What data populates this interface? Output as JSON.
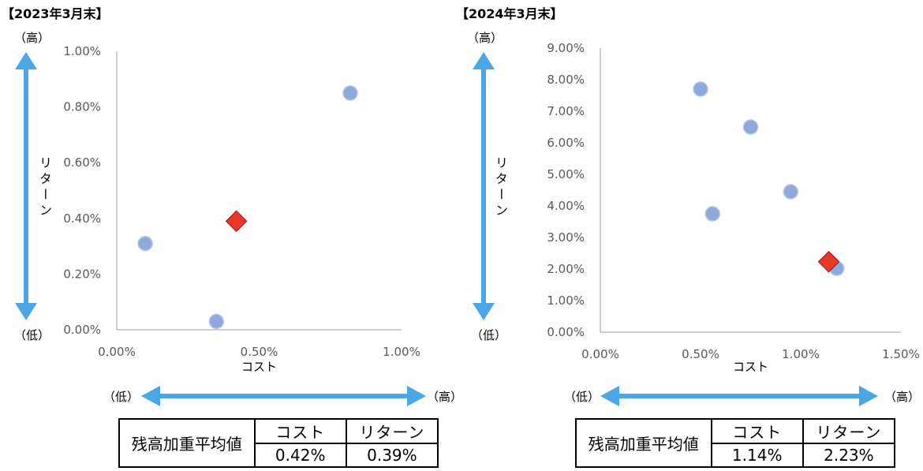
{
  "colors": {
    "point": "#8eaadb",
    "highlight": "#e8382a",
    "highlight_edge": "#a31f15",
    "arrow": "#4aa6e4",
    "axis": "#bfbfbf"
  },
  "panels": [
    {
      "title": "【2023年3月末】",
      "high_label": "（高）",
      "low_label": "（低）",
      "y_axis_word": "リターン",
      "x_low_label": "（低）",
      "x_high_label": "（高）",
      "table": {
        "row_label": "残高加重平均値",
        "col_cost": "コスト",
        "col_return": "リターン",
        "cost_value": "0.42%",
        "return_value": "0.39%"
      }
    },
    {
      "title": "【2024年3月末】",
      "high_label": "（高）",
      "low_label": "（低）",
      "y_axis_word": "リターン",
      "x_low_label": "（低）",
      "x_high_label": "（高）",
      "table": {
        "row_label": "残高加重平均値",
        "col_cost": "コスト",
        "col_return": "リターン",
        "cost_value": "1.14%",
        "return_value": "2.23%"
      }
    }
  ],
  "chart_data": [
    {
      "type": "scatter",
      "title": "【2023年3月末】",
      "xlabel": "コスト",
      "ylabel": "リターン",
      "xlim": [
        0,
        1.0
      ],
      "ylim": [
        0,
        1.0
      ],
      "x_ticks": [
        "0.00%",
        "0.50%",
        "1.00%"
      ],
      "y_ticks": [
        "0.00%",
        "0.20%",
        "0.40%",
        "0.60%",
        "0.80%",
        "1.00%"
      ],
      "grid": false,
      "points": [
        {
          "x": 0.1,
          "y": 0.31
        },
        {
          "x": 0.35,
          "y": 0.03
        },
        {
          "x": 0.82,
          "y": 0.85
        }
      ],
      "weighted_average": {
        "x": 0.42,
        "y": 0.39
      }
    },
    {
      "type": "scatter",
      "title": "【2024年3月末】",
      "xlabel": "コスト",
      "ylabel": "リターン",
      "xlim": [
        0,
        1.5
      ],
      "ylim": [
        0,
        9.0
      ],
      "x_ticks": [
        "0.00%",
        "0.50%",
        "1.00%",
        "1.50%"
      ],
      "y_ticks": [
        "0.00%",
        "1.00%",
        "2.00%",
        "3.00%",
        "4.00%",
        "5.00%",
        "6.00%",
        "7.00%",
        "8.00%",
        "9.00%"
      ],
      "grid": false,
      "points": [
        {
          "x": 0.5,
          "y": 7.7
        },
        {
          "x": 0.56,
          "y": 3.75
        },
        {
          "x": 0.75,
          "y": 6.5
        },
        {
          "x": 0.95,
          "y": 4.45
        },
        {
          "x": 1.18,
          "y": 2.02
        }
      ],
      "weighted_average": {
        "x": 1.14,
        "y": 2.23
      }
    }
  ]
}
